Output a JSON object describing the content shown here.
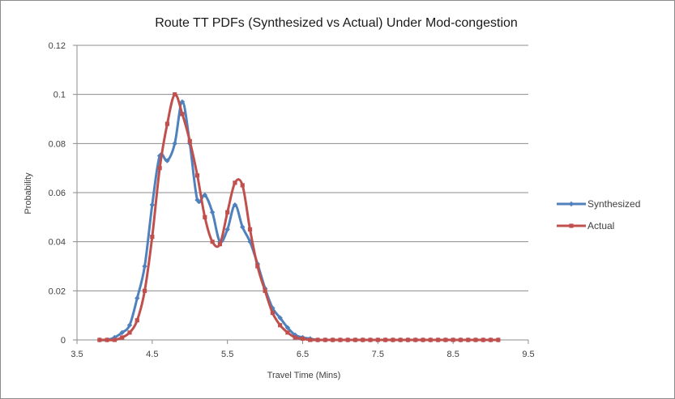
{
  "chart_data": {
    "type": "line",
    "title": "Route TT PDFs (Synthesized vs Actual) Under Mod-congestion",
    "xlabel": "Travel Time (Mins)",
    "ylabel": "Probability",
    "xlim": [
      3.5,
      9.5
    ],
    "ylim": [
      0,
      0.12
    ],
    "x_ticks": [
      "3.5",
      "4.5",
      "5.5",
      "6.5",
      "7.5",
      "8.5",
      "9.5"
    ],
    "y_ticks": [
      "0",
      "0.02",
      "0.04",
      "0.06",
      "0.08",
      "0.1",
      "0.12"
    ],
    "grid": "horizontal",
    "legend_position": "right",
    "x": [
      3.8,
      3.9,
      4.0,
      4.1,
      4.2,
      4.3,
      4.4,
      4.5,
      4.6,
      4.7,
      4.8,
      4.9,
      5.0,
      5.1,
      5.2,
      5.3,
      5.4,
      5.5,
      5.6,
      5.7,
      5.8,
      5.9,
      6.0,
      6.1,
      6.2,
      6.3,
      6.4,
      6.5,
      6.6,
      6.7,
      6.8,
      6.9,
      7.0,
      7.1,
      7.2,
      7.3,
      7.4,
      7.5,
      7.6,
      7.7,
      7.8,
      7.9,
      8.0,
      8.1,
      8.2,
      8.3,
      8.4,
      8.5,
      8.6,
      8.7,
      8.8,
      8.9,
      9.0,
      9.1
    ],
    "series": [
      {
        "name": "Synthesized",
        "color": "#4f81bd",
        "marker": "diamond",
        "values": [
          0,
          0,
          0.001,
          0.003,
          0.006,
          0.017,
          0.03,
          0.055,
          0.075,
          0.073,
          0.08,
          0.097,
          0.08,
          0.057,
          0.059,
          0.052,
          0.04,
          0.045,
          0.055,
          0.046,
          0.04,
          0.031,
          0.021,
          0.013,
          0.009,
          0.005,
          0.002,
          0.001,
          0.0005,
          0,
          0,
          0,
          0,
          0,
          0,
          0,
          0,
          0,
          0,
          0,
          0,
          0,
          0,
          0,
          0,
          0,
          0,
          0,
          0,
          0,
          0,
          0,
          0,
          0
        ]
      },
      {
        "name": "Actual",
        "color": "#c0504d",
        "marker": "square",
        "values": [
          0,
          0,
          0,
          0.001,
          0.003,
          0.008,
          0.02,
          0.042,
          0.07,
          0.088,
          0.1,
          0.092,
          0.081,
          0.067,
          0.05,
          0.04,
          0.039,
          0.052,
          0.064,
          0.063,
          0.045,
          0.03,
          0.02,
          0.011,
          0.006,
          0.003,
          0.001,
          0.0005,
          0,
          0,
          0,
          0,
          0,
          0,
          0,
          0,
          0,
          0,
          0,
          0,
          0,
          0,
          0,
          0,
          0,
          0,
          0,
          0,
          0,
          0,
          0,
          0,
          0,
          0
        ]
      }
    ]
  }
}
